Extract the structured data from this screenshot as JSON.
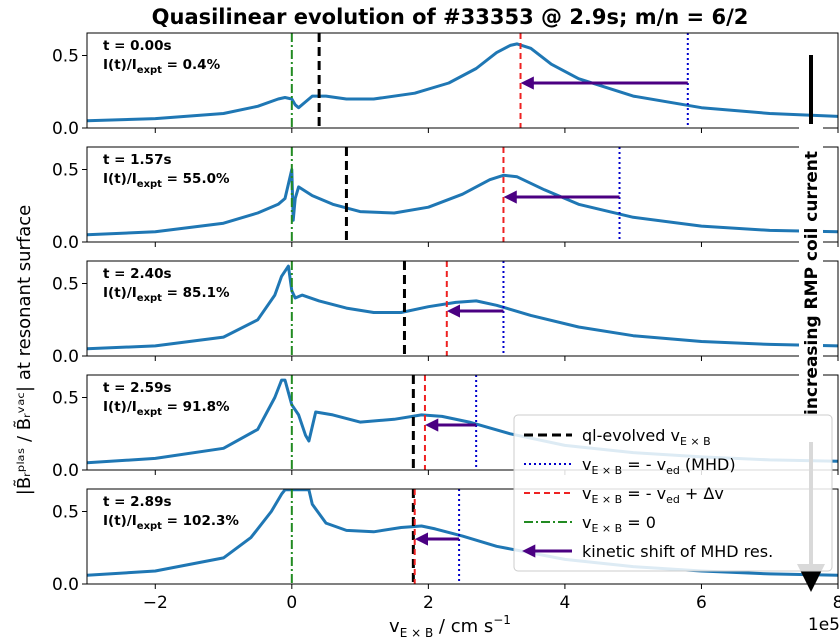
{
  "chart_data": {
    "type": "line",
    "title": "Quasilinear evolution of #33353 @ 2.9s; m/n = 6/2",
    "xlabel_main": "v",
    "xlabel_sub": "E × B",
    "xlabel_unit": " / cm s",
    "xlabel_exp": "−1",
    "x_offset_label": "1e5",
    "ylabel": "|B̃ᵣᵖˡᵃˢ / B̃ᵣᵛᵃᶜ| at resonant surface",
    "xlim": [
      -3.0,
      8.0
    ],
    "ylim": [
      0.0,
      0.6
    ],
    "xticks": [
      -2,
      0,
      2,
      4,
      6,
      8
    ],
    "xtick_labels": [
      "−2",
      "0",
      "2",
      "4",
      "6",
      "8"
    ],
    "yticks": [
      0.0,
      0.5
    ],
    "ytick_labels": [
      "0.0",
      "0.5"
    ],
    "side_annotation": "increasing RMP coil current",
    "colors": {
      "curve": "#1f77b4",
      "ql": "#000000",
      "mhd": "#0000cc",
      "shifted": "#ee2222",
      "zero": "#228b22",
      "arrow": "#4b0082"
    },
    "legend": {
      "position": "lower-right",
      "entries": [
        {
          "label": "ql-evolved v",
          "sub": "E × B",
          "rest": "",
          "style": "ql"
        },
        {
          "label": "v",
          "sub": "E × B",
          "rest": " = - v",
          "sub2": "ed",
          "rest2": " (MHD)",
          "style": "mhd"
        },
        {
          "label": "v",
          "sub": "E × B",
          "rest": " = - v",
          "sub2": "ed",
          "rest2": " + Δv",
          "style": "shifted"
        },
        {
          "label": "v",
          "sub": "E × B",
          "rest": " = 0",
          "style": "zero"
        },
        {
          "label": "kinetic shift of MHD res.",
          "sub": "",
          "rest": "",
          "style": "arrow"
        }
      ]
    },
    "panels": [
      {
        "time": "t = 0.00s",
        "ratio_label": "I(t)/I",
        "ratio_sub": "expt",
        "ratio_value": " = 0.4%",
        "ql_x": 0.4,
        "mhd_x": 5.8,
        "shifted_x": 3.35,
        "arrow_y": 0.31,
        "curve": [
          [
            -3,
            0.05
          ],
          [
            -2,
            0.065
          ],
          [
            -1,
            0.1
          ],
          [
            -0.5,
            0.15
          ],
          [
            -0.2,
            0.2
          ],
          [
            -0.1,
            0.21
          ],
          [
            0,
            0.2
          ],
          [
            0.05,
            0.16
          ],
          [
            0.1,
            0.14
          ],
          [
            0.2,
            0.18
          ],
          [
            0.3,
            0.22
          ],
          [
            0.5,
            0.22
          ],
          [
            0.8,
            0.2
          ],
          [
            1.2,
            0.2
          ],
          [
            1.8,
            0.24
          ],
          [
            2.3,
            0.31
          ],
          [
            2.7,
            0.41
          ],
          [
            3.0,
            0.52
          ],
          [
            3.2,
            0.57
          ],
          [
            3.3,
            0.58
          ],
          [
            3.5,
            0.55
          ],
          [
            3.8,
            0.44
          ],
          [
            4.2,
            0.34
          ],
          [
            5,
            0.22
          ],
          [
            6,
            0.14
          ],
          [
            7,
            0.1
          ],
          [
            8,
            0.08
          ]
        ]
      },
      {
        "time": "t = 1.57s",
        "ratio_label": "I(t)/I",
        "ratio_sub": "expt",
        "ratio_value": " = 55.0%",
        "ql_x": 0.8,
        "mhd_x": 4.8,
        "shifted_x": 3.1,
        "arrow_y": 0.31,
        "curve": [
          [
            -3,
            0.05
          ],
          [
            -2,
            0.07
          ],
          [
            -1,
            0.13
          ],
          [
            -0.5,
            0.2
          ],
          [
            -0.2,
            0.26
          ],
          [
            -0.1,
            0.3
          ],
          [
            -0.05,
            0.4
          ],
          [
            0,
            0.5
          ],
          [
            0.02,
            0.15
          ],
          [
            0.05,
            0.3
          ],
          [
            0.1,
            0.38
          ],
          [
            0.3,
            0.32
          ],
          [
            0.6,
            0.26
          ],
          [
            1.0,
            0.21
          ],
          [
            1.5,
            0.2
          ],
          [
            2.0,
            0.24
          ],
          [
            2.5,
            0.33
          ],
          [
            2.9,
            0.43
          ],
          [
            3.1,
            0.46
          ],
          [
            3.3,
            0.45
          ],
          [
            3.7,
            0.36
          ],
          [
            4.2,
            0.26
          ],
          [
            5,
            0.17
          ],
          [
            6,
            0.11
          ],
          [
            7,
            0.08
          ],
          [
            8,
            0.07
          ]
        ]
      },
      {
        "time": "t = 2.40s",
        "ratio_label": "I(t)/I",
        "ratio_sub": "expt",
        "ratio_value": " = 85.1%",
        "ql_x": 1.65,
        "mhd_x": 3.1,
        "shifted_x": 2.27,
        "arrow_y": 0.31,
        "curve": [
          [
            -3,
            0.05
          ],
          [
            -2,
            0.07
          ],
          [
            -1,
            0.13
          ],
          [
            -0.5,
            0.25
          ],
          [
            -0.25,
            0.42
          ],
          [
            -0.15,
            0.55
          ],
          [
            -0.05,
            0.62
          ],
          [
            0,
            0.45
          ],
          [
            0.05,
            0.4
          ],
          [
            0.15,
            0.42
          ],
          [
            0.4,
            0.38
          ],
          [
            0.8,
            0.33
          ],
          [
            1.2,
            0.3
          ],
          [
            1.6,
            0.3
          ],
          [
            2.0,
            0.34
          ],
          [
            2.4,
            0.37
          ],
          [
            2.7,
            0.38
          ],
          [
            3.0,
            0.35
          ],
          [
            3.5,
            0.28
          ],
          [
            4.2,
            0.2
          ],
          [
            5,
            0.14
          ],
          [
            6,
            0.1
          ],
          [
            7,
            0.08
          ],
          [
            8,
            0.07
          ]
        ]
      },
      {
        "time": "t = 2.59s",
        "ratio_label": "I(t)/I",
        "ratio_sub": "expt",
        "ratio_value": " = 91.8%",
        "ql_x": 1.78,
        "mhd_x": 2.7,
        "shifted_x": 1.95,
        "arrow_y": 0.31,
        "curve": [
          [
            -3,
            0.05
          ],
          [
            -2,
            0.08
          ],
          [
            -1,
            0.15
          ],
          [
            -0.5,
            0.28
          ],
          [
            -0.25,
            0.5
          ],
          [
            -0.15,
            0.62
          ],
          [
            -0.1,
            0.62
          ],
          [
            0,
            0.45
          ],
          [
            0.1,
            0.38
          ],
          [
            0.2,
            0.24
          ],
          [
            0.25,
            0.2
          ],
          [
            0.35,
            0.4
          ],
          [
            0.6,
            0.38
          ],
          [
            1.0,
            0.33
          ],
          [
            1.5,
            0.35
          ],
          [
            1.9,
            0.38
          ],
          [
            2.2,
            0.37
          ],
          [
            2.6,
            0.33
          ],
          [
            3.2,
            0.25
          ],
          [
            4,
            0.17
          ],
          [
            5,
            0.12
          ],
          [
            6,
            0.09
          ],
          [
            7,
            0.07
          ],
          [
            8,
            0.06
          ]
        ]
      },
      {
        "time": "t = 2.89s",
        "ratio_label": "I(t)/I",
        "ratio_sub": "expt",
        "ratio_value": " = 102.3%",
        "ql_x": 1.78,
        "mhd_x": 2.45,
        "shifted_x": 1.8,
        "arrow_y": 0.31,
        "curve": [
          [
            -3,
            0.06
          ],
          [
            -2,
            0.09
          ],
          [
            -1,
            0.18
          ],
          [
            -0.6,
            0.32
          ],
          [
            -0.3,
            0.5
          ],
          [
            -0.15,
            0.62
          ],
          [
            -0.1,
            0.65
          ],
          [
            0.25,
            0.65
          ],
          [
            0.3,
            0.55
          ],
          [
            0.5,
            0.42
          ],
          [
            0.8,
            0.37
          ],
          [
            1.2,
            0.36
          ],
          [
            1.6,
            0.39
          ],
          [
            1.9,
            0.4
          ],
          [
            2.1,
            0.38
          ],
          [
            2.5,
            0.33
          ],
          [
            3,
            0.26
          ],
          [
            4,
            0.17
          ],
          [
            5,
            0.12
          ],
          [
            6,
            0.09
          ],
          [
            7,
            0.07
          ],
          [
            8,
            0.06
          ]
        ]
      }
    ]
  }
}
